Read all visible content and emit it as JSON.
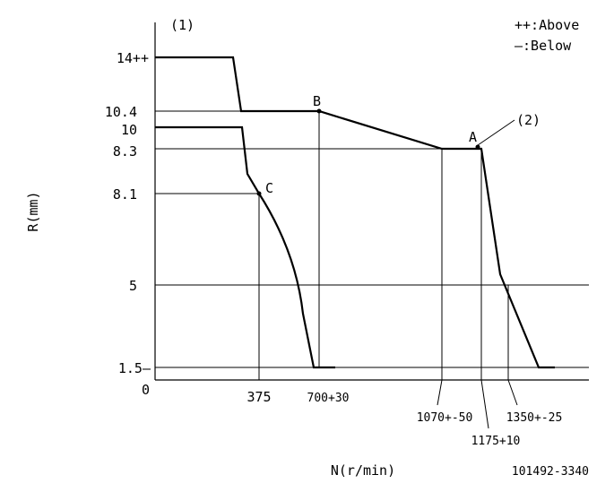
{
  "labels": {
    "marker1": "(1)",
    "marker2": "(2)",
    "legend_above": "++:Above",
    "legend_below": "—:Below",
    "y_axis": "R(mm)",
    "x_axis": "N(r/min)",
    "part_number": "101492-3340",
    "point_a": "A",
    "point_b": "B",
    "point_c": "C",
    "origin": "0"
  },
  "y_ticks": [
    "14++",
    "10.4",
    "10",
    "8.3",
    "8.1",
    "5",
    "1.5—"
  ],
  "x_ticks": [
    "375",
    "700+30",
    "1070+-50",
    "1175+10",
    "1350+-25"
  ]
}
